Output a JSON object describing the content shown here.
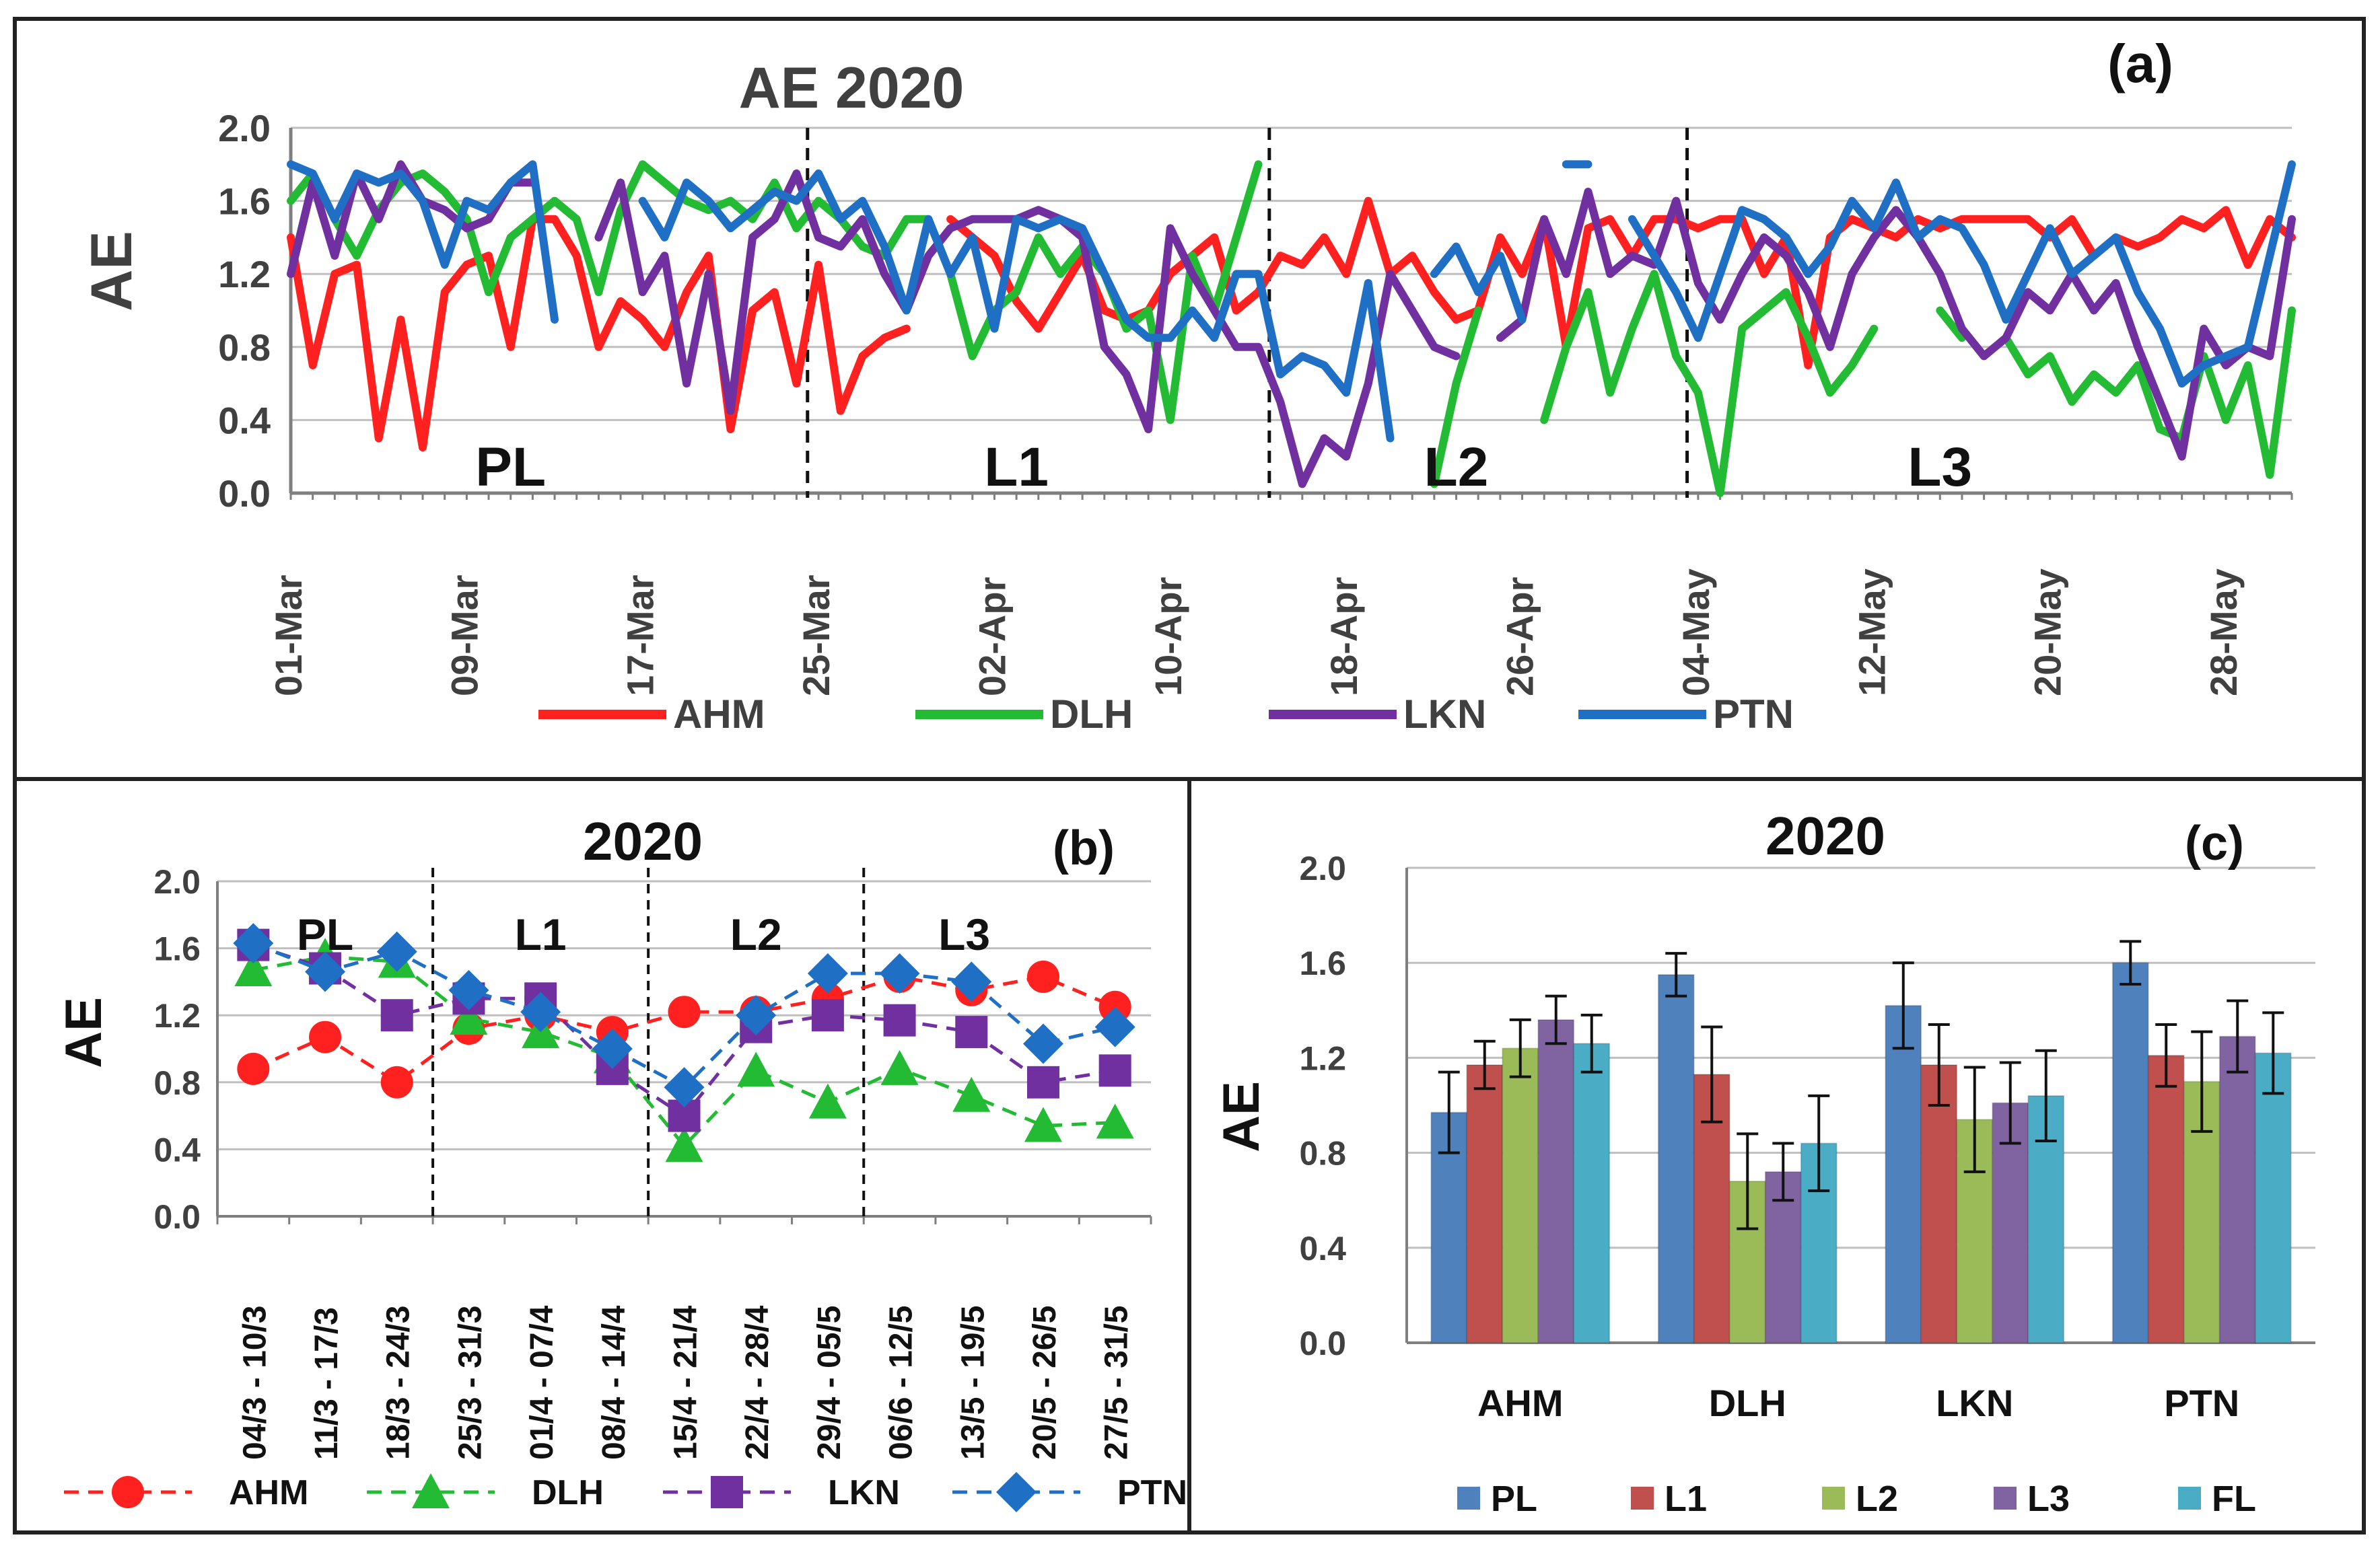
{
  "chart_data": [
    {
      "id": "a",
      "type": "line",
      "panel_label": "(a)",
      "title": "AE 2020",
      "ylabel": "AE",
      "ylim": [
        0,
        2.0
      ],
      "yticks": [
        "0.0",
        "0.4",
        "0.8",
        "1.2",
        "1.6",
        "2.0"
      ],
      "xticks": [
        "01-Mar",
        "09-Mar",
        "17-Mar",
        "25-Mar",
        "02-Apr",
        "10-Apr",
        "18-Apr",
        "26-Apr",
        "04-May",
        "12-May",
        "20-May",
        "28-May"
      ],
      "x_start": "01-Mar",
      "n_days": 92,
      "phase_dividers_day": [
        24,
        45,
        64
      ],
      "phases": [
        {
          "label": "PL",
          "center_day": 10
        },
        {
          "label": "L1",
          "center_day": 33
        },
        {
          "label": "L2",
          "center_day": 53
        },
        {
          "label": "L3",
          "center_day": 75
        }
      ],
      "series": [
        {
          "name": "AHM",
          "color": "#ff2020",
          "values": [
            1.4,
            0.7,
            1.2,
            1.25,
            0.3,
            0.95,
            0.25,
            1.1,
            1.25,
            1.3,
            0.8,
            1.5,
            1.5,
            1.3,
            0.8,
            1.05,
            0.95,
            0.8,
            1.1,
            1.3,
            0.35,
            1.0,
            1.1,
            0.6,
            1.25,
            0.45,
            0.75,
            0.85,
            0.9,
            null,
            1.5,
            1.4,
            1.3,
            1.05,
            0.9,
            1.1,
            1.3,
            1.0,
            0.95,
            1.0,
            1.2,
            1.3,
            1.4,
            1.0,
            1.1,
            1.3,
            1.25,
            1.4,
            1.2,
            1.6,
            1.2,
            1.3,
            1.1,
            0.95,
            1.0,
            1.4,
            1.2,
            1.5,
            0.8,
            1.45,
            1.5,
            1.3,
            1.5,
            1.5,
            1.45,
            1.5,
            1.5,
            1.2,
            1.4,
            0.7,
            1.4,
            1.5,
            1.45,
            1.4,
            1.5,
            1.45,
            1.5,
            1.5,
            1.5,
            1.5,
            1.4,
            1.5,
            1.3,
            1.4,
            1.35,
            1.4,
            1.5,
            1.45,
            1.55,
            1.25,
            1.5,
            1.4
          ]
        },
        {
          "name": "DLH",
          "color": "#22bb33",
          "values": [
            1.6,
            1.75,
            1.5,
            1.3,
            1.55,
            1.7,
            1.75,
            1.65,
            1.5,
            1.1,
            1.4,
            1.5,
            1.6,
            1.5,
            1.1,
            1.55,
            1.8,
            1.7,
            1.6,
            1.55,
            1.6,
            1.5,
            1.7,
            1.45,
            1.6,
            1.5,
            1.35,
            1.3,
            1.5,
            1.5,
            1.2,
            0.75,
            1.0,
            1.1,
            1.4,
            1.2,
            1.35,
            1.2,
            0.9,
            1.0,
            0.4,
            1.3,
            1.0,
            1.4,
            1.8,
            null,
            null,
            null,
            null,
            null,
            null,
            null,
            0.05,
            0.6,
            1.0,
            null,
            null,
            0.4,
            0.8,
            1.1,
            0.55,
            0.9,
            1.2,
            0.75,
            0.55,
            0.0,
            0.9,
            1.0,
            1.1,
            0.85,
            0.55,
            0.7,
            0.9,
            null,
            null,
            1.0,
            0.85,
            null,
            0.85,
            0.65,
            0.75,
            0.5,
            0.65,
            0.55,
            0.7,
            0.35,
            0.3,
            0.75,
            0.4,
            0.7,
            0.1,
            1.0
          ]
        },
        {
          "name": "LKN",
          "color": "#7030a0",
          "values": [
            1.2,
            1.7,
            1.3,
            1.75,
            1.5,
            1.8,
            1.6,
            1.55,
            1.45,
            1.5,
            1.7,
            1.7,
            null,
            null,
            1.4,
            1.7,
            1.1,
            1.3,
            0.6,
            1.2,
            0.45,
            1.4,
            1.5,
            1.75,
            1.4,
            1.35,
            1.5,
            1.2,
            1.0,
            1.3,
            1.45,
            1.5,
            1.5,
            1.5,
            1.55,
            1.5,
            1.4,
            0.8,
            0.65,
            0.35,
            1.45,
            1.2,
            1.0,
            0.8,
            0.8,
            0.5,
            0.05,
            0.3,
            0.2,
            0.6,
            1.2,
            1.0,
            0.8,
            0.75,
            null,
            0.85,
            0.95,
            1.5,
            1.2,
            1.65,
            1.2,
            1.3,
            1.25,
            1.6,
            1.15,
            0.95,
            1.2,
            1.4,
            1.3,
            1.1,
            0.8,
            1.2,
            1.4,
            1.55,
            1.4,
            1.2,
            0.9,
            0.75,
            0.85,
            1.1,
            1.0,
            1.2,
            1.0,
            1.15,
            0.8,
            0.5,
            0.2,
            0.9,
            0.7,
            0.8,
            0.75,
            1.5
          ]
        },
        {
          "name": "PTN",
          "color": "#1f6fc5",
          "values": [
            1.8,
            1.75,
            1.5,
            1.75,
            1.7,
            1.75,
            1.6,
            1.25,
            1.6,
            1.55,
            1.7,
            1.8,
            0.95,
            null,
            null,
            null,
            1.6,
            1.4,
            1.7,
            1.6,
            1.45,
            1.55,
            1.65,
            1.6,
            1.75,
            1.5,
            1.6,
            1.35,
            1.0,
            1.5,
            1.2,
            1.4,
            0.9,
            1.5,
            1.45,
            1.5,
            1.45,
            1.2,
            0.95,
            0.85,
            0.85,
            1.0,
            0.85,
            1.2,
            1.2,
            0.65,
            0.75,
            0.7,
            0.55,
            1.15,
            0.3,
            null,
            1.2,
            1.35,
            1.1,
            1.3,
            0.95,
            null,
            1.8,
            1.8,
            null,
            1.5,
            1.3,
            1.1,
            0.85,
            1.2,
            1.55,
            1.5,
            1.4,
            1.2,
            1.35,
            1.6,
            1.45,
            1.7,
            1.4,
            1.5,
            1.45,
            1.25,
            0.95,
            1.2,
            1.45,
            1.2,
            1.3,
            1.4,
            1.1,
            0.9,
            0.6,
            0.7,
            0.75,
            0.8,
            1.3,
            1.8
          ]
        }
      ]
    },
    {
      "id": "b",
      "type": "line",
      "panel_label": "(b)",
      "title": "2020",
      "ylabel": "AE",
      "ylim": [
        0,
        2.0
      ],
      "yticks": [
        "0.0",
        "0.4",
        "0.8",
        "1.2",
        "1.6",
        "2.0"
      ],
      "categories": [
        "04/3 - 10/3",
        "11/3 - 17/3",
        "18/3 - 24/3",
        "25/3 - 31/3",
        "01/4 - 07/4",
        "08/4 - 14/4",
        "15/4 - 21/4",
        "22/4 - 28/4",
        "29/4 - 05/5",
        "06/6 - 12/5",
        "13/5 - 19/5",
        "20/5 - 26/5",
        "27/5 - 31/5"
      ],
      "phase_dividers_after_index": [
        2,
        5,
        8
      ],
      "phases": [
        "PL",
        "L1",
        "L2",
        "L3"
      ],
      "series": [
        {
          "name": "AHM",
          "color": "#ff2020",
          "marker": "circle",
          "values": [
            0.88,
            1.07,
            0.8,
            1.12,
            1.2,
            1.1,
            1.22,
            1.22,
            1.3,
            1.43,
            1.35,
            1.43,
            1.25
          ]
        },
        {
          "name": "DLH",
          "color": "#22bb33",
          "marker": "triangle",
          "values": [
            1.47,
            1.55,
            1.52,
            1.18,
            1.1,
            0.95,
            0.42,
            0.87,
            0.68,
            0.88,
            0.72,
            0.54,
            0.56
          ]
        },
        {
          "name": "LKN",
          "color": "#7030a0",
          "marker": "square",
          "values": [
            1.62,
            1.48,
            1.2,
            1.3,
            1.3,
            0.88,
            0.6,
            1.13,
            1.2,
            1.17,
            1.1,
            0.8,
            0.87
          ]
        },
        {
          "name": "PTN",
          "color": "#1f6fc5",
          "marker": "diamond",
          "values": [
            1.63,
            1.46,
            1.58,
            1.35,
            1.22,
            1.0,
            0.77,
            1.2,
            1.45,
            1.45,
            1.4,
            1.03,
            1.13
          ]
        }
      ]
    },
    {
      "id": "c",
      "type": "bar",
      "panel_label": "(c)",
      "title": "2020",
      "ylabel": "AE",
      "ylim": [
        0,
        2.0
      ],
      "yticks": [
        "0.0",
        "0.4",
        "0.8",
        "1.2",
        "1.6",
        "2.0"
      ],
      "categories": [
        "AHM",
        "DLH",
        "LKN",
        "PTN"
      ],
      "series": [
        {
          "name": "PL",
          "color": "#4f81bd",
          "values": [
            0.97,
            1.55,
            1.42,
            1.6
          ],
          "errors": [
            0.17,
            0.09,
            0.18,
            0.09
          ]
        },
        {
          "name": "L1",
          "color": "#c0504d",
          "values": [
            1.17,
            1.13,
            1.17,
            1.21
          ],
          "errors": [
            0.1,
            0.2,
            0.17,
            0.13
          ]
        },
        {
          "name": "L2",
          "color": "#9bbb59",
          "values": [
            1.24,
            0.68,
            0.94,
            1.1
          ],
          "errors": [
            0.12,
            0.2,
            0.22,
            0.21
          ]
        },
        {
          "name": "L3",
          "color": "#8064a2",
          "values": [
            1.36,
            0.72,
            1.01,
            1.29
          ],
          "errors": [
            0.1,
            0.12,
            0.17,
            0.15
          ]
        },
        {
          "name": "FL",
          "color": "#4bacc6",
          "values": [
            1.26,
            0.84,
            1.04,
            1.22
          ],
          "errors": [
            0.12,
            0.2,
            0.19,
            0.17
          ]
        }
      ]
    }
  ]
}
